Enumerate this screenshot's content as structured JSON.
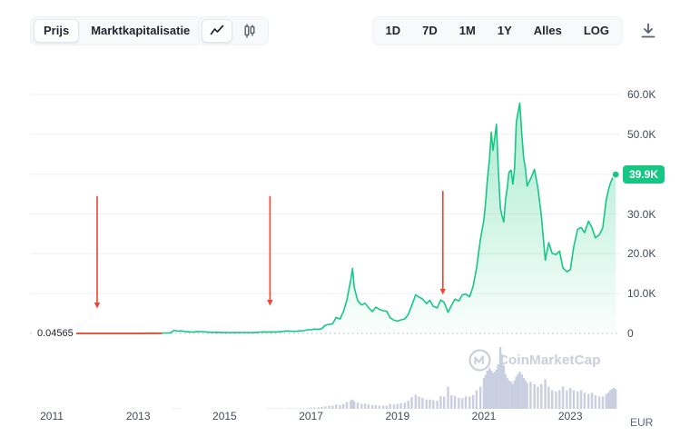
{
  "toolbar": {
    "view_toggle": [
      {
        "label": "Prijs",
        "selected": true
      },
      {
        "label": "Marktkapitalisatie",
        "selected": false
      }
    ],
    "chart_type": [
      {
        "name": "line-chart",
        "selected": true
      },
      {
        "name": "candlestick-chart",
        "selected": false
      }
    ],
    "ranges": [
      {
        "label": "1D"
      },
      {
        "label": "7D"
      },
      {
        "label": "1M"
      },
      {
        "label": "1Y"
      },
      {
        "label": "Alles"
      },
      {
        "label": "LOG"
      }
    ]
  },
  "chart_data": {
    "type": "line",
    "series_name": "Prijs (EUR)",
    "y_axis_unit": "EUR",
    "start_price_label": "0.04565",
    "current_price": {
      "value": 39900,
      "label": "39.9K"
    },
    "x_ticks": [
      2011,
      2013,
      2015,
      2017,
      2019,
      2021,
      2023
    ],
    "y_ticks": [
      {
        "value": 60000,
        "label": "60.0K"
      },
      {
        "value": 50000,
        "label": "50.0K"
      },
      {
        "value": 40000,
        "label": "40.0K",
        "hidden_behind_badge": true
      },
      {
        "value": 30000,
        "label": "30.0K"
      },
      {
        "value": 20000,
        "label": "20.0K"
      },
      {
        "value": 10000,
        "label": "10.0K"
      },
      {
        "value": 0,
        "label": "0"
      }
    ],
    "ylim": [
      0,
      63000
    ],
    "xlim": [
      2010.5,
      2024.15
    ],
    "grid": "horizontal",
    "watermark": "CoinMarketCap",
    "colors": {
      "line": "#16c784",
      "volume": "#c9cfe0",
      "red": "#f24430",
      "grid": "#eef1f6",
      "zero_line": "#b0b7c3",
      "badge": "#16c784"
    },
    "annotations": {
      "red_segment": {
        "x_start": 2010.7,
        "x_end": 2013.55,
        "price": 0
      },
      "arrows": [
        {
          "x": 2012.05,
          "price_top": 34500,
          "price_bottom": 7750
        },
        {
          "x": 2016.05,
          "price_top": 34500,
          "price_bottom": 8450
        },
        {
          "x": 2020.05,
          "price_top": 35800,
          "price_bottom": 11200
        }
      ]
    },
    "x_years": [
      2010.7,
      2010.85,
      2011.0,
      2011.08,
      2011.17,
      2011.25,
      2011.33,
      2011.42,
      2011.5,
      2011.58,
      2011.67,
      2011.75,
      2011.83,
      2011.92,
      2012.0,
      2012.08,
      2012.17,
      2012.25,
      2012.33,
      2012.42,
      2012.5,
      2012.58,
      2012.67,
      2012.75,
      2012.83,
      2012.92,
      2013.0,
      2013.08,
      2013.17,
      2013.25,
      2013.33,
      2013.42,
      2013.5,
      2013.58,
      2013.67,
      2013.75,
      2013.83,
      2013.92,
      2014.0,
      2014.08,
      2014.17,
      2014.25,
      2014.33,
      2014.42,
      2014.5,
      2014.58,
      2014.67,
      2014.75,
      2014.83,
      2014.92,
      2015.0,
      2015.08,
      2015.17,
      2015.25,
      2015.33,
      2015.42,
      2015.5,
      2015.58,
      2015.67,
      2015.75,
      2015.83,
      2015.92,
      2016.0,
      2016.08,
      2016.17,
      2016.25,
      2016.33,
      2016.42,
      2016.5,
      2016.58,
      2016.67,
      2016.75,
      2016.83,
      2016.92,
      2017.0,
      2017.08,
      2017.17,
      2017.25,
      2017.33,
      2017.42,
      2017.5,
      2017.58,
      2017.67,
      2017.75,
      2017.83,
      2017.92,
      2017.96,
      2018.0,
      2018.08,
      2018.17,
      2018.25,
      2018.33,
      2018.42,
      2018.5,
      2018.58,
      2018.67,
      2018.75,
      2018.83,
      2018.92,
      2019.0,
      2019.08,
      2019.17,
      2019.25,
      2019.33,
      2019.42,
      2019.5,
      2019.58,
      2019.67,
      2019.75,
      2019.83,
      2019.92,
      2020.0,
      2020.08,
      2020.17,
      2020.25,
      2020.33,
      2020.42,
      2020.5,
      2020.58,
      2020.67,
      2020.75,
      2020.83,
      2020.92,
      2021.0,
      2021.04,
      2021.08,
      2021.13,
      2021.17,
      2021.21,
      2021.25,
      2021.29,
      2021.33,
      2021.38,
      2021.42,
      2021.46,
      2021.5,
      2021.54,
      2021.58,
      2021.63,
      2021.67,
      2021.71,
      2021.75,
      2021.79,
      2021.83,
      2021.88,
      2021.92,
      2021.96,
      2022.0,
      2022.08,
      2022.17,
      2022.25,
      2022.33,
      2022.42,
      2022.5,
      2022.58,
      2022.67,
      2022.75,
      2022.83,
      2022.92,
      2023.0,
      2023.08,
      2023.17,
      2023.25,
      2023.33,
      2023.42,
      2023.5,
      2023.58,
      2023.67,
      2023.75,
      2023.83,
      2023.88,
      2023.92,
      2023.96,
      2024.0,
      2024.05
    ],
    "price_eur": [
      0.05,
      0.08,
      0.3,
      0.7,
      0.65,
      0.8,
      2.5,
      6.5,
      11,
      8,
      4.2,
      2.5,
      2.3,
      3.5,
      4.5,
      4.0,
      3.8,
      3.9,
      4.0,
      4.5,
      5.5,
      8.0,
      9.5,
      8.7,
      9.6,
      10.5,
      15,
      22,
      72,
      105,
      98,
      80,
      75,
      93,
      105,
      155,
      785,
      560,
      640,
      480,
      415,
      335,
      420,
      470,
      445,
      370,
      305,
      270,
      300,
      255,
      195,
      205,
      228,
      215,
      208,
      235,
      255,
      205,
      212,
      275,
      345,
      395,
      358,
      392,
      372,
      402,
      470,
      610,
      592,
      516,
      545,
      632,
      690,
      905,
      920,
      1100,
      995,
      1210,
      2050,
      2280,
      2420,
      4010,
      3620,
      5480,
      8420,
      13500,
      16300,
      11500,
      8200,
      7150,
      7600,
      6450,
      5500,
      6600,
      6050,
      5700,
      5600,
      3950,
      3300,
      3100,
      3400,
      3650,
      4750,
      7000,
      9700,
      9100,
      8700,
      7500,
      8300,
      6800,
      6400,
      8400,
      7800,
      5300,
      7050,
      8600,
      8200,
      9700,
      9900,
      9200,
      11800,
      16400,
      23700,
      28500,
      33000,
      38500,
      44000,
      50500,
      46000,
      49000,
      52500,
      42000,
      31500,
      29500,
      28000,
      33500,
      36500,
      40500,
      41000,
      37500,
      41500,
      53000,
      55500,
      57800,
      49500,
      44000,
      41500,
      37000,
      38800,
      41200,
      36500,
      29500,
      18400,
      22800,
      20100,
      19800,
      20700,
      16400,
      15500,
      16000,
      21800,
      26200,
      26600,
      25300,
      28200,
      26600,
      24000,
      24800,
      26500,
      33500,
      36000,
      37500,
      38600,
      39500,
      39900
    ],
    "volume_rel": [
      0,
      0,
      0.002,
      0.002,
      0.002,
      0.002,
      0.002,
      0.002,
      0.002,
      0.002,
      0.002,
      0.002,
      0.002,
      0.002,
      0.002,
      0.002,
      0.002,
      0.002,
      0.002,
      0.002,
      0.002,
      0.002,
      0.002,
      0.002,
      0.002,
      0.002,
      0.003,
      0.003,
      0.003,
      0.003,
      0.003,
      0.003,
      0.003,
      0.003,
      0.003,
      0.003,
      0.008,
      0.008,
      0.006,
      0.006,
      0.006,
      0.006,
      0.006,
      0.006,
      0.006,
      0.006,
      0.006,
      0.006,
      0.006,
      0.006,
      0.005,
      0.005,
      0.005,
      0.005,
      0.005,
      0.005,
      0.005,
      0.005,
      0.005,
      0.005,
      0.005,
      0.005,
      0.008,
      0.008,
      0.008,
      0.008,
      0.008,
      0.008,
      0.008,
      0.008,
      0.008,
      0.008,
      0.008,
      0.008,
      0.02,
      0.02,
      0.025,
      0.03,
      0.04,
      0.05,
      0.05,
      0.07,
      0.06,
      0.08,
      0.11,
      0.14,
      0.15,
      0.12,
      0.1,
      0.08,
      0.08,
      0.07,
      0.06,
      0.06,
      0.05,
      0.05,
      0.05,
      0.08,
      0.07,
      0.08,
      0.09,
      0.1,
      0.13,
      0.19,
      0.23,
      0.2,
      0.18,
      0.15,
      0.15,
      0.14,
      0.13,
      0.21,
      0.2,
      0.36,
      0.22,
      0.21,
      0.18,
      0.17,
      0.2,
      0.2,
      0.22,
      0.3,
      0.36,
      0.5,
      0.55,
      0.62,
      0.66,
      0.62,
      0.58,
      0.6,
      0.64,
      0.72,
      1.0,
      0.88,
      0.7,
      0.56,
      0.5,
      0.46,
      0.44,
      0.4,
      0.46,
      0.52,
      0.56,
      0.6,
      0.56,
      0.5,
      0.46,
      0.42,
      0.44,
      0.4,
      0.36,
      0.4,
      0.48,
      0.36,
      0.3,
      0.28,
      0.3,
      0.36,
      0.3,
      0.34,
      0.3,
      0.28,
      0.3,
      0.26,
      0.24,
      0.26,
      0.22,
      0.2,
      0.2,
      0.24,
      0.26,
      0.3,
      0.32,
      0.34,
      0.32
    ]
  }
}
